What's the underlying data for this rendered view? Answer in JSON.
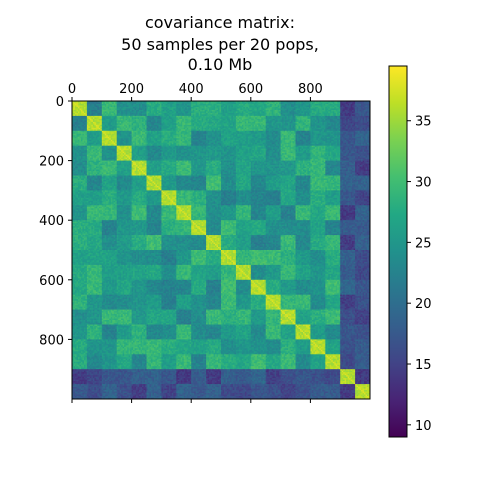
{
  "chart_data": {
    "type": "heatmap",
    "title_lines": [
      "covariance matrix:",
      "50 samples per 20 pops,",
      "0.10 Mb"
    ],
    "matrix_size": 1000,
    "n_pops": 20,
    "samples_per_pop": 50,
    "x_ticks": [
      0,
      200,
      400,
      600,
      800
    ],
    "x_tick_labels": [
      "0",
      "200",
      "400",
      "600",
      "800"
    ],
    "x_tick_position": "top",
    "y_ticks": [
      0,
      200,
      400,
      600,
      800
    ],
    "y_tick_labels": [
      "0",
      "200",
      "400",
      "600",
      "800"
    ],
    "colormap": "viridis",
    "colorbar": {
      "range": [
        9,
        39.5
      ],
      "ticks": [
        10,
        15,
        20,
        25,
        30,
        35
      ],
      "tick_labels": [
        "10",
        "15",
        "20",
        "25",
        "30",
        "35"
      ],
      "placement": "right"
    },
    "diagonal_block_value": 34,
    "within_population_value": 36,
    "self_value": 38,
    "low_variance_pops": [
      18,
      19
    ],
    "low_variance_value": 14,
    "background_range": [
      22,
      30
    ]
  }
}
